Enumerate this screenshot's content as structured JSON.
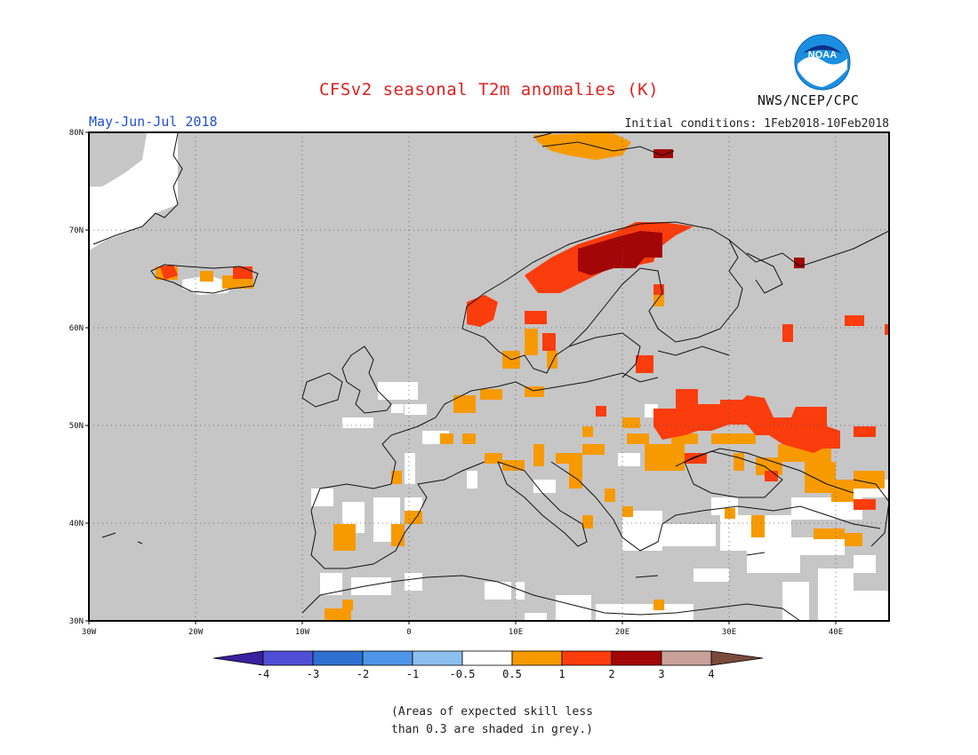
{
  "header": {
    "title": "CFSv2 seasonal T2m anomalies (K)",
    "period": "May-Jun-Jul 2018",
    "initial_conditions": "Initial conditions: 1Feb2018-10Feb2018",
    "agency": "NWS/NCEP/CPC",
    "logo_text": "NOAA"
  },
  "map": {
    "region": "Europe",
    "lon_range": [
      -30,
      45
    ],
    "lat_range": [
      30,
      80
    ],
    "lat_ticks": [
      "30N",
      "40N",
      "50N",
      "60N",
      "70N",
      "80N"
    ],
    "lon_ticks": [
      "30W",
      "20W",
      "10W",
      "0",
      "10E",
      "20E",
      "30E",
      "40E"
    ],
    "background_color": "#c6c6c6",
    "anomaly_regions": [
      {
        "name": "Svalbard",
        "category": "0.5 to 1"
      },
      {
        "name": "Northern Scandinavia",
        "category": "2 to 3"
      },
      {
        "name": "Western Norway",
        "category": "1 to 2"
      },
      {
        "name": "Ukraine / Southern Russia",
        "category": "1 to 2"
      },
      {
        "name": "Iceland",
        "category": "1 to 2"
      },
      {
        "name": "Central Europe",
        "category": "0.5 to 1"
      },
      {
        "name": "Iberia",
        "category": "0.5 to 1"
      },
      {
        "name": "Black Sea / Caucasus",
        "category": "0.5 to 1"
      }
    ]
  },
  "colorbar": {
    "labels": [
      "-4",
      "-3",
      "-2",
      "-1",
      "-0.5",
      "0.5",
      "1",
      "2",
      "3",
      "4"
    ],
    "colors": [
      "#3a1f9e",
      "#4f4fd6",
      "#2f6fd0",
      "#4e96e8",
      "#8cc0f0",
      "#ffffff",
      "#f79a00",
      "#fb3c0c",
      "#a30606",
      "#c9a19a",
      "#7a4a3a"
    ]
  },
  "footnote": {
    "line1": "(Areas of expected skill less",
    "line2": "than 0.3 are shaded in grey.)"
  }
}
